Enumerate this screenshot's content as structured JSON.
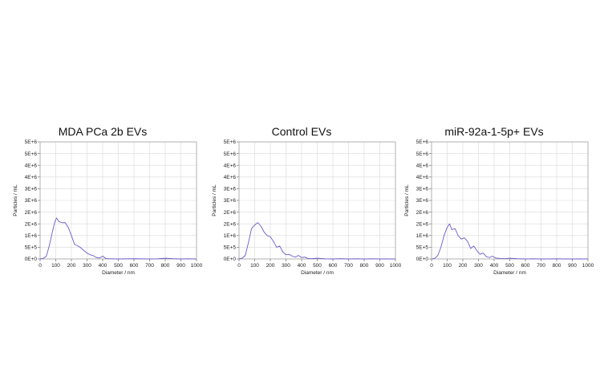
{
  "chart_data": [
    {
      "type": "line",
      "title": "MDA PCa 2b EVs",
      "xlabel": "Diameter / nm",
      "ylabel": "Particles / mL",
      "xlim": [
        0,
        1000
      ],
      "ylim": [
        0,
        5000000
      ],
      "x_ticks": [
        "0",
        "100",
        "200",
        "300",
        "400",
        "500",
        "600",
        "700",
        "800",
        "900",
        "1000"
      ],
      "y_ticks": [
        "0E+0",
        "5E+5",
        "1E+6",
        "2E+6",
        "2E+6",
        "3E+6",
        "3E+6",
        "4E+6",
        "4E+6",
        "5E+6",
        "5E+6"
      ],
      "grid": true,
      "series": [
        {
          "color": "#6a5acd",
          "x": [
            0,
            20,
            40,
            60,
            80,
            95,
            105,
            120,
            140,
            160,
            180,
            200,
            220,
            240,
            260,
            280,
            300,
            320,
            340,
            360,
            380,
            400,
            420,
            440,
            460,
            500,
            550,
            600,
            650,
            700,
            750,
            800,
            850,
            900,
            950,
            1000
          ],
          "y": [
            0,
            20000,
            120000,
            600000,
            1200000,
            1600000,
            1750000,
            1600000,
            1550000,
            1550000,
            1350000,
            1000000,
            620000,
            560000,
            480000,
            360000,
            250000,
            180000,
            140000,
            60000,
            40000,
            120000,
            20000,
            10000,
            5000,
            0,
            5000,
            10000,
            5000,
            0,
            5000,
            30000,
            10000,
            0,
            5000,
            0
          ]
        }
      ]
    },
    {
      "type": "line",
      "title": "Control EVs",
      "xlabel": "Diameter / nm",
      "ylabel": "Particles / mL",
      "xlim": [
        0,
        1000
      ],
      "ylim": [
        0,
        5000000
      ],
      "x_ticks": [
        "0",
        "100",
        "200",
        "300",
        "400",
        "500",
        "600",
        "700",
        "800",
        "900",
        "1000"
      ],
      "y_ticks": [
        "0E+0",
        "5E+5",
        "1E+6",
        "2E+6",
        "2E+6",
        "3E+6",
        "3E+6",
        "4E+6",
        "4E+6",
        "5E+6",
        "5E+6"
      ],
      "grid": true,
      "series": [
        {
          "color": "#6a5acd",
          "x": [
            0,
            20,
            40,
            60,
            80,
            100,
            120,
            140,
            160,
            180,
            200,
            220,
            240,
            260,
            280,
            300,
            320,
            340,
            360,
            380,
            400,
            420,
            440,
            460,
            500,
            550,
            600,
            650,
            700,
            750,
            800,
            850,
            900,
            950,
            1000
          ],
          "y": [
            0,
            30000,
            150000,
            700000,
            1300000,
            1450000,
            1550000,
            1400000,
            1150000,
            1000000,
            950000,
            750000,
            500000,
            550000,
            300000,
            180000,
            200000,
            120000,
            80000,
            150000,
            60000,
            80000,
            20000,
            10000,
            30000,
            5000,
            0,
            10000,
            0,
            5000,
            0,
            5000,
            0,
            0,
            0
          ]
        }
      ]
    },
    {
      "type": "line",
      "title": "miR-92a-1-5p+ EVs",
      "xlabel": "Diameter / nm",
      "ylabel": "Particles / mL",
      "xlim": [
        0,
        1000
      ],
      "ylim": [
        0,
        5000000
      ],
      "x_ticks": [
        "0",
        "100",
        "200",
        "300",
        "400",
        "500",
        "600",
        "700",
        "800",
        "900",
        "1000"
      ],
      "y_ticks": [
        "0E+0",
        "5E+5",
        "1E+6",
        "2E+6",
        "2E+6",
        "3E+6",
        "3E+6",
        "4E+6",
        "4E+6",
        "5E+6",
        "5E+6"
      ],
      "grid": true,
      "series": [
        {
          "color": "#6a5acd",
          "x": [
            0,
            20,
            40,
            60,
            80,
            100,
            115,
            130,
            150,
            170,
            190,
            210,
            230,
            250,
            270,
            290,
            310,
            330,
            350,
            370,
            390,
            410,
            440,
            470,
            500,
            550,
            600,
            650,
            700,
            750,
            800,
            850,
            900,
            950,
            1000
          ],
          "y": [
            0,
            20000,
            150000,
            500000,
            1000000,
            1350000,
            1500000,
            1250000,
            1300000,
            1000000,
            850000,
            900000,
            750000,
            450000,
            550000,
            350000,
            200000,
            250000,
            100000,
            60000,
            120000,
            40000,
            20000,
            10000,
            30000,
            10000,
            0,
            5000,
            0,
            0,
            5000,
            0,
            0,
            0,
            0
          ]
        }
      ]
    }
  ]
}
